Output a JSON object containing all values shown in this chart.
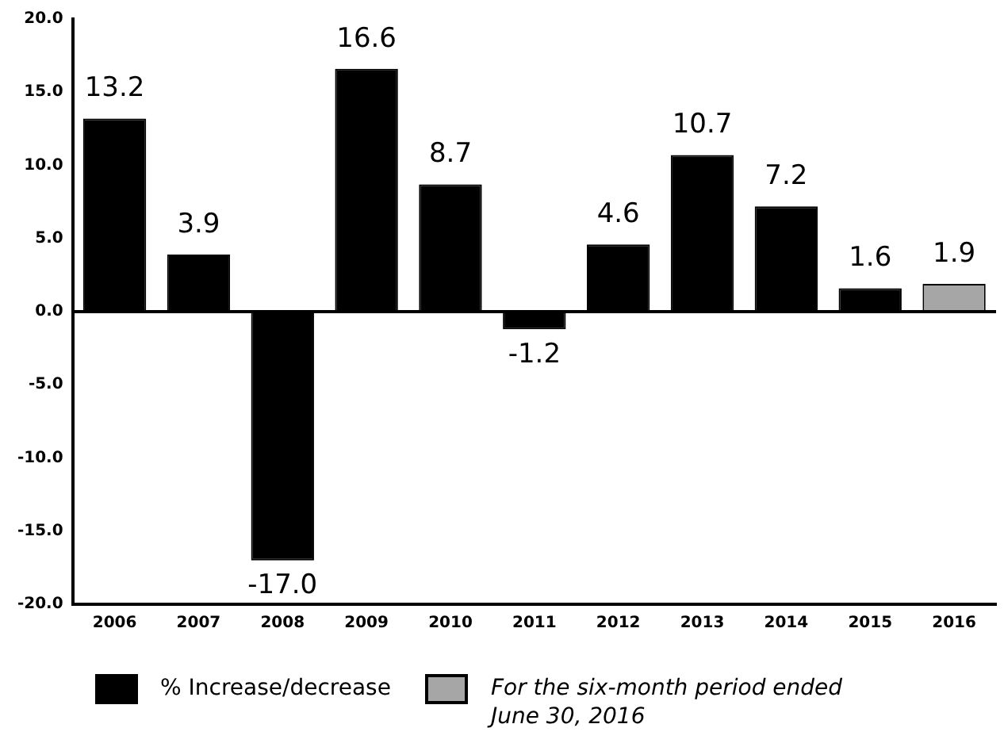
{
  "chart_data": {
    "type": "bar",
    "categories": [
      "2006",
      "2007",
      "2008",
      "2009",
      "2010",
      "2011",
      "2012",
      "2013",
      "2014",
      "2015",
      "2016"
    ],
    "series": [
      {
        "name": "% Increase/decrease",
        "color": "#000000",
        "values": [
          13.2,
          3.9,
          -17.0,
          16.6,
          8.7,
          -1.2,
          4.6,
          10.7,
          7.2,
          1.6,
          null
        ],
        "value_labels": [
          "13.2",
          "3.9",
          "-17.0",
          "16.6",
          "8.7",
          "-1.2",
          "4.6",
          "10.7",
          "7.2",
          "1.6",
          null
        ]
      },
      {
        "name": "For the six-month period ended June 30, 2016",
        "color": "#a6a6a6",
        "values": [
          null,
          null,
          null,
          null,
          null,
          null,
          null,
          null,
          null,
          null,
          1.9
        ],
        "value_labels": [
          null,
          null,
          null,
          null,
          null,
          null,
          null,
          null,
          null,
          null,
          "1.9"
        ]
      }
    ],
    "ylim": [
      -20,
      20
    ],
    "yticks": [
      {
        "value": -20,
        "label": "-20.0"
      },
      {
        "value": -15,
        "label": "-15.0"
      },
      {
        "value": -10,
        "label": "-10.0"
      },
      {
        "value": -5,
        "label": "-5.0"
      },
      {
        "value": 0,
        "label": "0.0"
      },
      {
        "value": 5,
        "label": "5.0"
      },
      {
        "value": 10,
        "label": "10.0"
      },
      {
        "value": 15,
        "label": "15.0"
      },
      {
        "value": 20,
        "label": "20.0"
      }
    ],
    "ref_lines": [
      {
        "axis": "y",
        "value": 0,
        "color": "#000000"
      }
    ],
    "grid": false,
    "legend": "bottom"
  }
}
